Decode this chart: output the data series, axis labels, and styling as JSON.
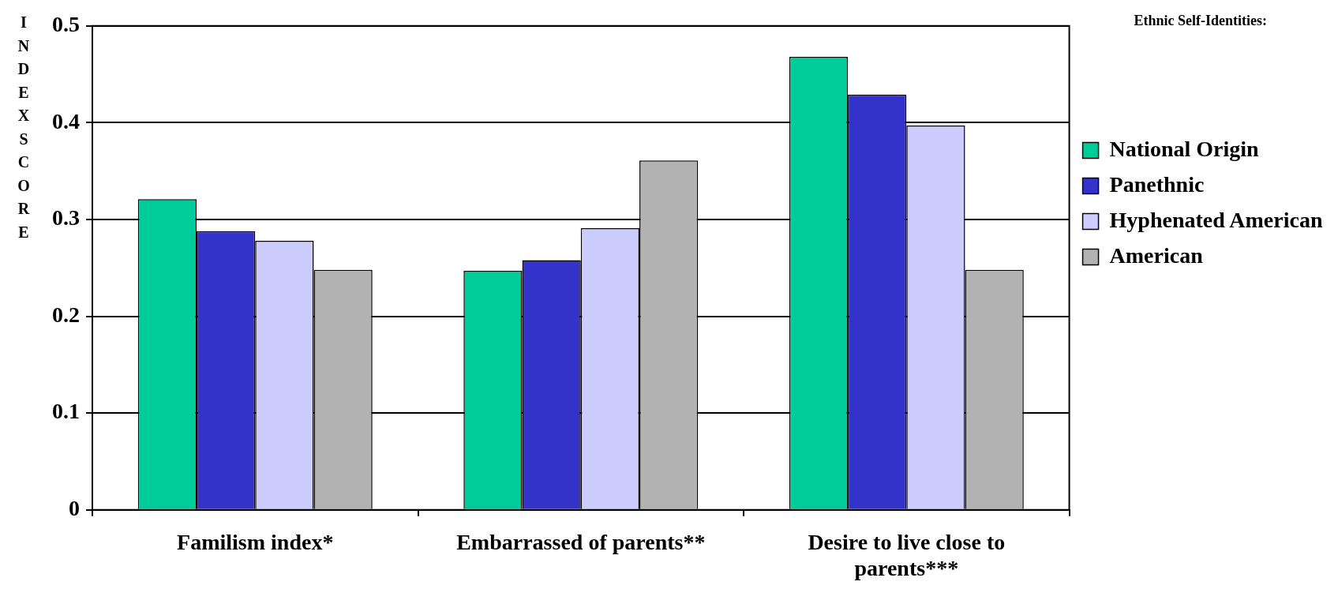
{
  "chart_data": {
    "type": "bar",
    "ylabel": "INDEXSCORE",
    "legend_title": "Ethnic Self-Identities:",
    "categories": [
      "Familism index*",
      "Embarrassed of parents**",
      "Desire to live close to parents***"
    ],
    "series": [
      {
        "name": "National Origin",
        "color": "#00cc99",
        "values": [
          0.321,
          0.247,
          0.468
        ]
      },
      {
        "name": "Panethnic",
        "color": "#3333cc",
        "values": [
          0.288,
          0.258,
          0.429
        ]
      },
      {
        "name": "Hyphenated American",
        "color": "#ccccff",
        "values": [
          0.278,
          0.291,
          0.397
        ]
      },
      {
        "name": "American",
        "color": "#b2b2b2",
        "values": [
          0.248,
          0.361,
          0.248
        ]
      }
    ],
    "ylim": [
      0,
      0.5
    ],
    "yticks": [
      0,
      0.1,
      0.2,
      0.3,
      0.4,
      0.5
    ],
    "grid": "y",
    "legend": "right"
  }
}
